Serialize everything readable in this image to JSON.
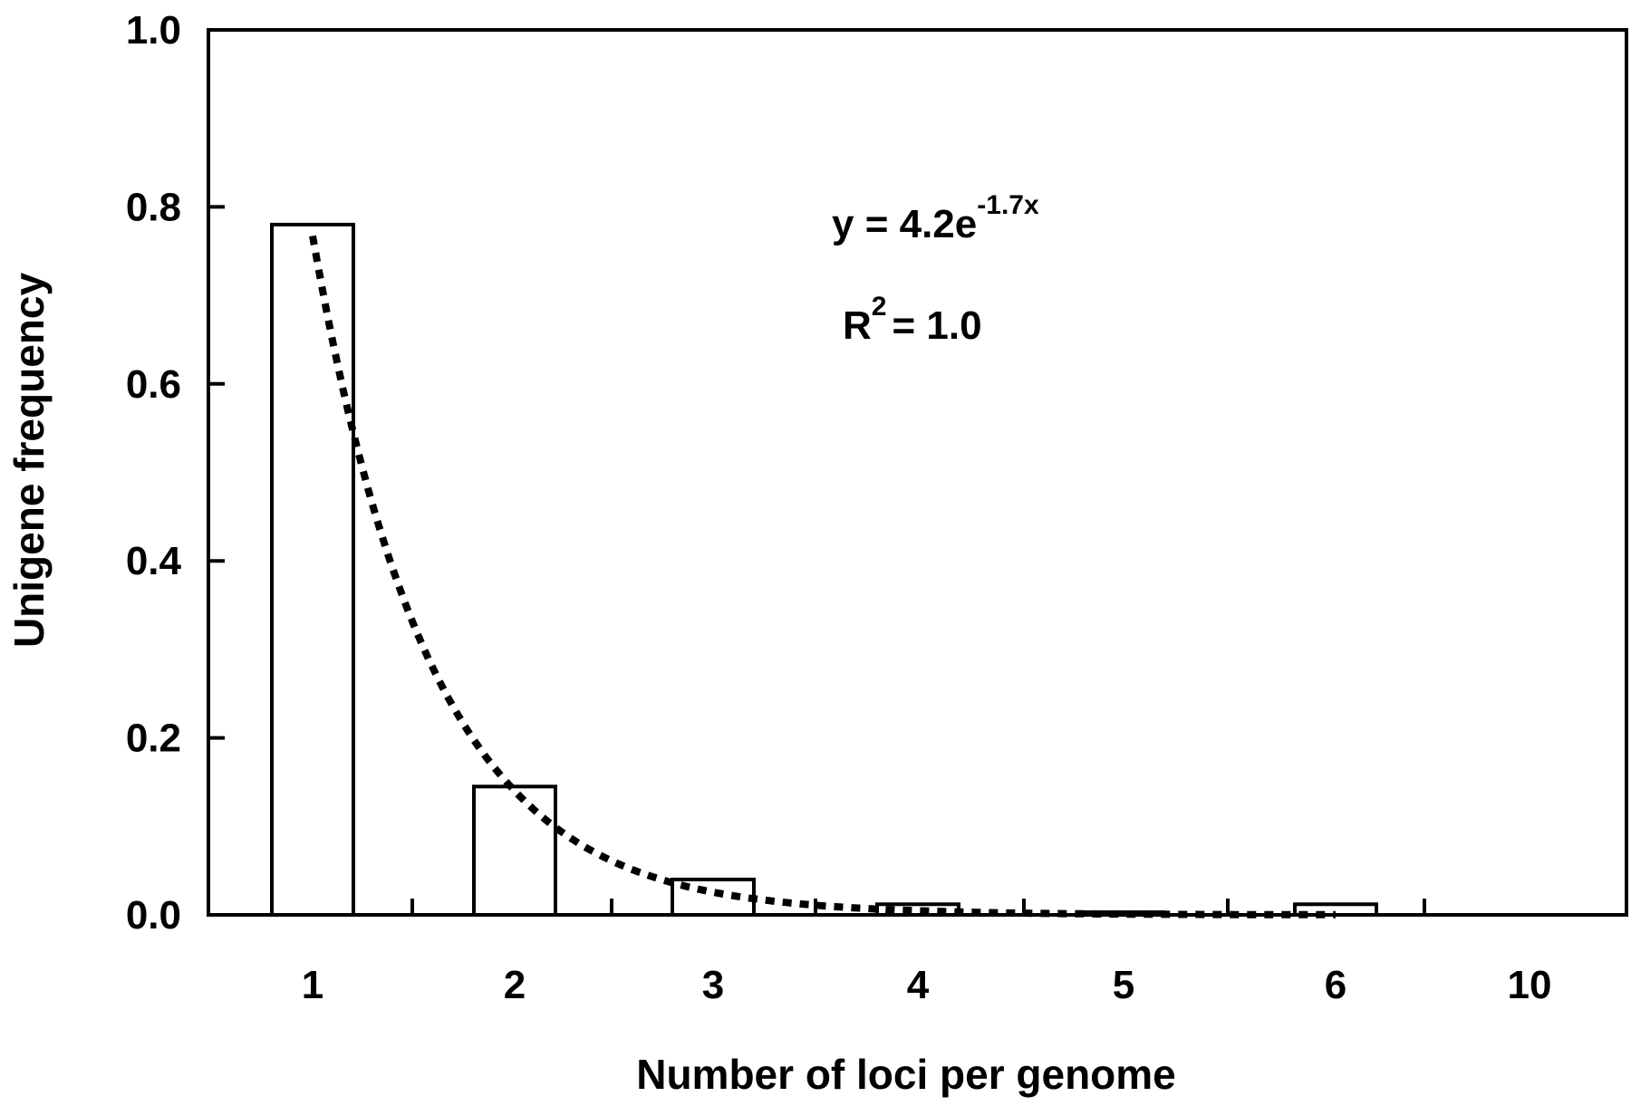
{
  "chart_data": {
    "type": "bar",
    "title": "",
    "xlabel": "Number of loci per genome",
    "ylabel": "Unigene frequency",
    "categories": [
      "1",
      "2",
      "3",
      "4",
      "5",
      "6",
      "10"
    ],
    "series": [
      {
        "values": [
          0.78,
          0.145,
          0.04,
          0.012,
          0.003,
          0.012,
          0.0
        ]
      }
    ],
    "fit": {
      "equation_prefix": "y = 4.2e",
      "equation_exponent": "-1.7x",
      "r2_prefix": "R",
      "r2_exponent": "2",
      "r2_suffix": "= 1.0",
      "a": 4.2,
      "b": -1.7,
      "style": "dotted"
    },
    "ylim": [
      0,
      1.0
    ],
    "yticks": [
      "0.0",
      "0.2",
      "0.4",
      "0.6",
      "0.8",
      "1.0"
    ],
    "grid": false,
    "legend": "none",
    "colors": {
      "bar_fill": "#ffffff",
      "bar_stroke": "#000000",
      "fit_line": "#000000",
      "axis": "#000000"
    }
  }
}
